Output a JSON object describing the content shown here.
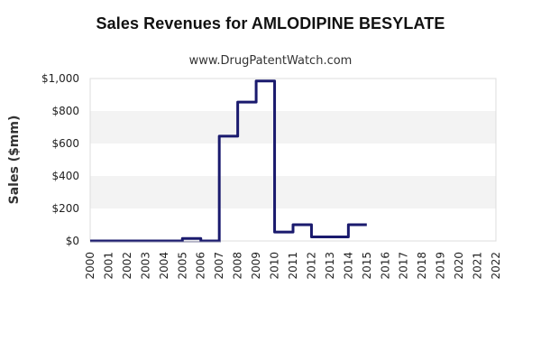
{
  "chart_data": {
    "type": "line",
    "style": "step",
    "title": "Sales Revenues for AMLODIPINE BESYLATE",
    "subtitle": "www.DrugPatentWatch.com",
    "xlabel": "",
    "ylabel": "Sales ($mm)",
    "ylim": [
      0,
      1000
    ],
    "yticks": [
      "$0",
      "$200",
      "$400",
      "$600",
      "$800",
      "$1,000"
    ],
    "ytick_values": [
      0,
      200,
      400,
      600,
      800,
      1000
    ],
    "categories": [
      "2000",
      "2001",
      "2002",
      "2003",
      "2004",
      "2005",
      "2006",
      "2007",
      "2008",
      "2009",
      "2010",
      "2011",
      "2012",
      "2013",
      "2014",
      "2015",
      "2016",
      "2017",
      "2018",
      "2019",
      "2020",
      "2021",
      "2022"
    ],
    "grid": "alternating horizontal bands",
    "series": [
      {
        "name": "AMLODIPINE BESYLATE",
        "color": "#1a1a6e",
        "x": [
          2000,
          2001,
          2002,
          2003,
          2004,
          2005,
          2006,
          2007,
          2008,
          2009,
          2010,
          2011,
          2012,
          2013,
          2014
        ],
        "values": [
          0,
          0,
          0,
          0,
          0,
          15,
          0,
          645,
          855,
          985,
          55,
          100,
          25,
          25,
          100
        ],
        "end_x": 2015
      }
    ]
  }
}
